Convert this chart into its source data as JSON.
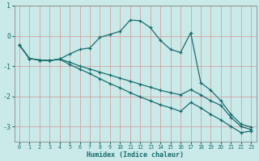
{
  "xlabel": "Humidex (Indice chaleur)",
  "background_color": "#caeaea",
  "grid_color": "#d4a0a0",
  "line_color": "#1a6b6b",
  "spine_color": "#888888",
  "xlim": [
    -0.5,
    23.5
  ],
  "ylim": [
    -3.5,
    1.0
  ],
  "yticks": [
    -3,
    -2,
    -1,
    0,
    1
  ],
  "xticks": [
    0,
    1,
    2,
    3,
    4,
    5,
    6,
    7,
    8,
    9,
    10,
    11,
    12,
    13,
    14,
    15,
    16,
    17,
    18,
    19,
    20,
    21,
    22,
    23
  ],
  "line1_x": [
    0,
    1,
    2,
    3,
    4,
    5,
    6,
    7,
    8,
    9,
    10,
    11,
    12,
    13,
    14,
    15,
    16,
    17,
    18,
    19,
    20,
    21,
    22,
    23
  ],
  "line1_y": [
    -0.3,
    -0.75,
    -0.8,
    -0.82,
    -0.77,
    -0.6,
    -0.45,
    -0.4,
    -0.05,
    0.05,
    0.15,
    0.52,
    0.5,
    0.27,
    -0.15,
    -0.45,
    -0.55,
    0.1,
    -1.55,
    -1.8,
    -2.15,
    -2.6,
    -2.92,
    -3.02
  ],
  "line2_x": [
    0,
    1,
    2,
    3,
    4,
    5,
    6,
    7,
    8,
    9,
    10,
    11,
    12,
    13,
    14,
    15,
    16,
    17,
    18,
    19,
    20,
    21,
    22,
    23
  ],
  "line2_y": [
    -0.3,
    -0.75,
    -0.8,
    -0.82,
    -0.77,
    -0.87,
    -1.0,
    -1.1,
    -1.2,
    -1.3,
    -1.4,
    -1.5,
    -1.6,
    -1.7,
    -1.8,
    -1.88,
    -1.95,
    -1.78,
    -1.95,
    -2.15,
    -2.3,
    -2.7,
    -3.0,
    -3.1
  ],
  "line3_x": [
    0,
    1,
    2,
    3,
    4,
    5,
    6,
    7,
    8,
    9,
    10,
    11,
    12,
    13,
    14,
    15,
    16,
    17,
    18,
    19,
    20,
    21,
    22,
    23
  ],
  "line3_y": [
    -0.3,
    -0.75,
    -0.8,
    -0.82,
    -0.77,
    -0.95,
    -1.1,
    -1.25,
    -1.42,
    -1.58,
    -1.72,
    -1.88,
    -2.02,
    -2.15,
    -2.28,
    -2.38,
    -2.5,
    -2.2,
    -2.38,
    -2.6,
    -2.78,
    -3.0,
    -3.2,
    -3.15
  ]
}
